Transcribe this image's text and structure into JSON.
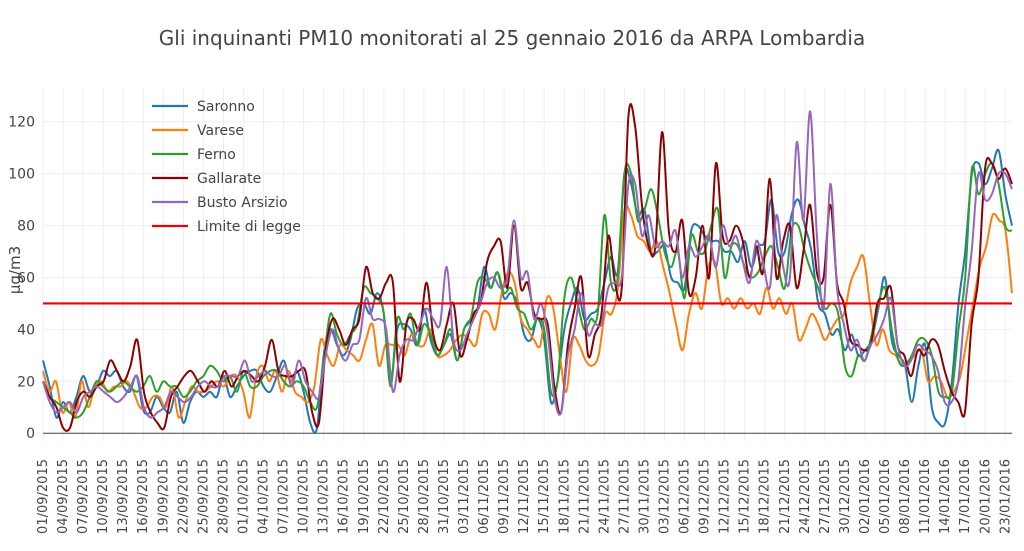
{
  "chart_data": {
    "type": "line",
    "title": "Gli inquinanti PM10 monitorati al 25 gennaio 2016 da ARPA Lombardia",
    "ylabel": "µg/m3",
    "xlabel": "",
    "ylim": [
      -3,
      133
    ],
    "yticks": [
      0,
      20,
      40,
      60,
      80,
      100,
      120
    ],
    "grid": true,
    "legend_position": "top-left",
    "start_date": "2015-09-01",
    "x_tick_labels": [
      "01/09/2015",
      "04/09/2015",
      "07/09/2015",
      "10/09/2015",
      "13/09/2015",
      "16/09/2015",
      "19/09/2015",
      "22/09/2015",
      "25/09/2015",
      "28/09/2015",
      "01/10/2015",
      "04/10/2015",
      "07/10/2015",
      "10/10/2015",
      "13/10/2015",
      "16/10/2015",
      "19/10/2015",
      "22/10/2015",
      "25/10/2015",
      "28/10/2015",
      "31/10/2015",
      "03/11/2015",
      "06/11/2015",
      "09/11/2015",
      "12/11/2015",
      "15/11/2015",
      "18/11/2015",
      "21/11/2015",
      "24/11/2015",
      "27/11/2015",
      "30/11/2015",
      "03/12/2015",
      "06/12/2015",
      "09/12/2015",
      "12/12/2015",
      "15/12/2015",
      "18/12/2015",
      "21/12/2015",
      "24/12/2015",
      "27/12/2015",
      "30/12/2015",
      "02/01/2016",
      "05/01/2016",
      "08/01/2016",
      "11/01/2016",
      "14/01/2016",
      "17/01/2016",
      "20/01/2016",
      "23/01/2016"
    ],
    "series": [
      {
        "name": "Saronno",
        "color": "#1f77b4",
        "values": [
          28,
          18,
          6,
          12,
          8,
          14,
          22,
          16,
          18,
          24,
          22,
          24,
          18,
          16,
          22,
          9,
          8,
          14,
          10,
          8,
          16,
          4,
          12,
          16,
          14,
          16,
          14,
          22,
          14,
          18,
          22,
          24,
          24,
          18,
          16,
          22,
          28,
          20,
          24,
          16,
          4,
          2,
          30,
          40,
          34,
          30,
          36,
          48,
          50,
          46,
          54,
          46,
          20,
          40,
          42,
          40,
          34,
          48,
          36,
          30,
          34,
          38,
          28,
          40,
          44,
          48,
          64,
          56,
          62,
          52,
          54,
          50,
          38,
          36,
          44,
          36,
          12,
          20,
          40,
          50,
          56,
          44,
          46,
          48,
          58,
          68,
          62,
          100,
          96,
          84,
          86,
          70,
          70,
          72,
          60,
          58,
          56,
          78,
          80,
          76,
          74,
          74,
          70,
          70,
          66,
          74,
          64,
          72,
          74,
          90,
          70,
          70,
          84,
          90,
          80,
          70,
          50,
          46,
          38,
          40,
          32,
          38,
          30,
          32,
          36,
          48,
          60,
          36,
          30,
          26,
          12,
          26,
          34,
          10,
          4,
          4,
          20,
          50,
          70,
          100,
          104,
          96,
          102,
          109,
          92,
          80
        ]
      },
      {
        "name": "Varese",
        "color": "#ff7f0e",
        "values": [
          24,
          16,
          20,
          8,
          12,
          6,
          20,
          10,
          18,
          20,
          16,
          18,
          18,
          20,
          16,
          10,
          10,
          14,
          14,
          10,
          18,
          6,
          12,
          18,
          16,
          16,
          18,
          20,
          18,
          22,
          22,
          16,
          6,
          22,
          26,
          20,
          24,
          16,
          24,
          16,
          14,
          12,
          18,
          36,
          30,
          26,
          34,
          32,
          30,
          28,
          36,
          42,
          26,
          34,
          34,
          34,
          30,
          38,
          34,
          34,
          40,
          30,
          30,
          32,
          36,
          38,
          36,
          34,
          46,
          46,
          40,
          54,
          62,
          58,
          44,
          40,
          36,
          34,
          52,
          48,
          30,
          16,
          36,
          34,
          28,
          26,
          30,
          46,
          46,
          56,
          86,
          84,
          76,
          74,
          70,
          74,
          64,
          54,
          42,
          32,
          46,
          54,
          48,
          64,
          66,
          50,
          52,
          48,
          52,
          48,
          50,
          46,
          56,
          48,
          52,
          46,
          50,
          36,
          40,
          46,
          42,
          36,
          40,
          44,
          46,
          58,
          64,
          68,
          50,
          34,
          40,
          32,
          30,
          26,
          28,
          30,
          32,
          20,
          22,
          20,
          14,
          16,
          22,
          36,
          50,
          64,
          72,
          84,
          82,
          78,
          54
        ]
      },
      {
        "name": "Ferno",
        "color": "#2ca02c",
        "values": [
          20,
          14,
          12,
          10,
          8,
          6,
          8,
          14,
          20,
          18,
          16,
          18,
          20,
          18,
          16,
          18,
          22,
          16,
          20,
          18,
          18,
          14,
          16,
          20,
          22,
          26,
          24,
          20,
          22,
          16,
          24,
          18,
          18,
          22,
          24,
          24,
          20,
          18,
          20,
          18,
          12,
          10,
          28,
          46,
          38,
          34,
          38,
          42,
          56,
          54,
          52,
          46,
          18,
          44,
          40,
          46,
          34,
          42,
          38,
          30,
          34,
          40,
          28,
          40,
          44,
          58,
          60,
          56,
          62,
          54,
          56,
          48,
          46,
          40,
          44,
          40,
          16,
          20,
          52,
          60,
          50,
          40,
          44,
          46,
          84,
          58,
          60,
          100,
          100,
          82,
          86,
          94,
          84,
          70,
          64,
          70,
          52,
          76,
          70,
          70,
          80,
          86,
          60,
          72,
          72,
          64,
          60,
          62,
          68,
          72,
          64,
          56,
          78,
          80,
          70,
          62,
          56,
          48,
          50,
          46,
          26,
          22,
          30,
          28,
          38,
          50,
          56,
          40,
          28,
          26,
          30,
          36,
          36,
          30,
          16,
          14,
          16,
          40,
          60,
          102,
          92,
          100,
          104,
          96,
          80,
          78
        ]
      },
      {
        "name": "Gallarate",
        "color": "#8b0000",
        "values": [
          20,
          14,
          10,
          2,
          2,
          12,
          16,
          14,
          18,
          20,
          28,
          24,
          20,
          26,
          36,
          16,
          8,
          4,
          2,
          14,
          18,
          22,
          24,
          20,
          16,
          20,
          18,
          24,
          18,
          22,
          24,
          22,
          20,
          26,
          36,
          24,
          22,
          22,
          24,
          24,
          8,
          4,
          32,
          44,
          40,
          34,
          40,
          44,
          64,
          54,
          52,
          58,
          58,
          20,
          42,
          44,
          40,
          58,
          38,
          32,
          42,
          50,
          30,
          36,
          46,
          50,
          66,
          72,
          74,
          56,
          80,
          56,
          58,
          46,
          44,
          42,
          18,
          8,
          34,
          48,
          60,
          30,
          38,
          46,
          76,
          58,
          56,
          122,
          118,
          88,
          72,
          72,
          116,
          78,
          70,
          82,
          54,
          60,
          80,
          60,
          104,
          76,
          74,
          80,
          74,
          60,
          72,
          62,
          98,
          60,
          74,
          80,
          56,
          70,
          88,
          62,
          60,
          88,
          58,
          50,
          36,
          34,
          32,
          34,
          50,
          52,
          56,
          34,
          30,
          22,
          32,
          30,
          36,
          34,
          24,
          16,
          12,
          8,
          42,
          60,
          102,
          104,
          98,
          102,
          96
        ]
      },
      {
        "name": "Busto Arsizio",
        "color": "#9467bd",
        "values": [
          20,
          12,
          8,
          10,
          12,
          8,
          14,
          16,
          18,
          16,
          14,
          12,
          14,
          18,
          22,
          10,
          6,
          8,
          10,
          16,
          14,
          12,
          14,
          18,
          20,
          18,
          18,
          22,
          22,
          22,
          28,
          20,
          22,
          24,
          22,
          22,
          26,
          18,
          28,
          20,
          16,
          14,
          30,
          40,
          32,
          28,
          34,
          36,
          52,
          44,
          44,
          40,
          16,
          30,
          36,
          36,
          42,
          48,
          44,
          42,
          64,
          36,
          32,
          38,
          44,
          50,
          58,
          60,
          56,
          60,
          82,
          60,
          62,
          44,
          50,
          38,
          14,
          8,
          30,
          40,
          54,
          38,
          42,
          42,
          56,
          58,
          60,
          96,
          96,
          76,
          84,
          72,
          74,
          72,
          78,
          60,
          72,
          68,
          72,
          76,
          64,
          80,
          72,
          76,
          66,
          58,
          74,
          66,
          56,
          84,
          64,
          60,
          112,
          82,
          124,
          76,
          48,
          96,
          56,
          42,
          32,
          36,
          28,
          34,
          38,
          44,
          52,
          34,
          26,
          28,
          34,
          32,
          30,
          24,
          12,
          12,
          20,
          48,
          70,
          100,
          90,
          92,
          100,
          100,
          94
        ]
      },
      {
        "name": "Limite di legge",
        "color": "#e8000b",
        "values": [
          50,
          50
        ]
      }
    ]
  }
}
